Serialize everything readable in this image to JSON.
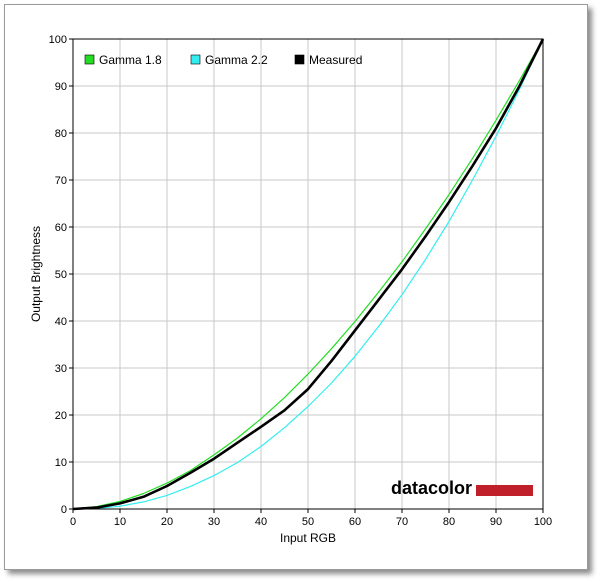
{
  "chart_data": {
    "type": "line",
    "xlabel": "Input RGB",
    "ylabel": "Output Brightness",
    "xlim": [
      0,
      100
    ],
    "ylim": [
      0,
      100
    ],
    "x_ticks": [
      "0",
      "10",
      "20",
      "30",
      "40",
      "50",
      "60",
      "70",
      "80",
      "90",
      "100"
    ],
    "y_ticks": [
      "0",
      "10",
      "20",
      "30",
      "40",
      "50",
      "60",
      "70",
      "80",
      "90",
      "100"
    ],
    "grid": true,
    "legend_position": "top-left",
    "series": [
      {
        "name": "Gamma 1.8",
        "color": "#22dd22",
        "x": [
          0,
          5,
          10,
          15,
          20,
          25,
          30,
          35,
          40,
          45,
          50,
          55,
          60,
          65,
          70,
          75,
          80,
          85,
          90,
          95,
          100
        ],
        "y": [
          0,
          0.5,
          1.6,
          3.3,
          5.5,
          8.2,
          11.5,
          15.1,
          19.2,
          23.7,
          28.7,
          34.1,
          39.9,
          46.1,
          52.6,
          59.6,
          66.9,
          74.6,
          82.7,
          91.2,
          100
        ]
      },
      {
        "name": "Gamma 2.2",
        "color": "#33eeee",
        "x": [
          0,
          5,
          10,
          15,
          20,
          25,
          30,
          35,
          40,
          45,
          50,
          55,
          60,
          65,
          70,
          75,
          80,
          85,
          90,
          95,
          100
        ],
        "y": [
          0,
          0.1,
          0.6,
          1.5,
          2.9,
          4.8,
          7.1,
          9.9,
          13.3,
          17.3,
          21.8,
          26.8,
          32.5,
          38.8,
          45.6,
          53.1,
          61.2,
          70.0,
          79.3,
          89.3,
          100
        ]
      },
      {
        "name": "Measured",
        "color": "#000000",
        "x": [
          0,
          5,
          10,
          15,
          20,
          25,
          30,
          35,
          40,
          45,
          50,
          55,
          60,
          65,
          70,
          75,
          80,
          85,
          90,
          95,
          100
        ],
        "y": [
          0,
          0.3,
          1.2,
          2.6,
          4.9,
          7.7,
          10.7,
          14.1,
          17.5,
          21.0,
          25.5,
          31.5,
          38.0,
          44.5,
          51.0,
          58.0,
          65.3,
          73.0,
          81.0,
          90.0,
          100
        ]
      }
    ]
  },
  "brand": {
    "name": "datacolor",
    "accent": "#c0202a"
  }
}
